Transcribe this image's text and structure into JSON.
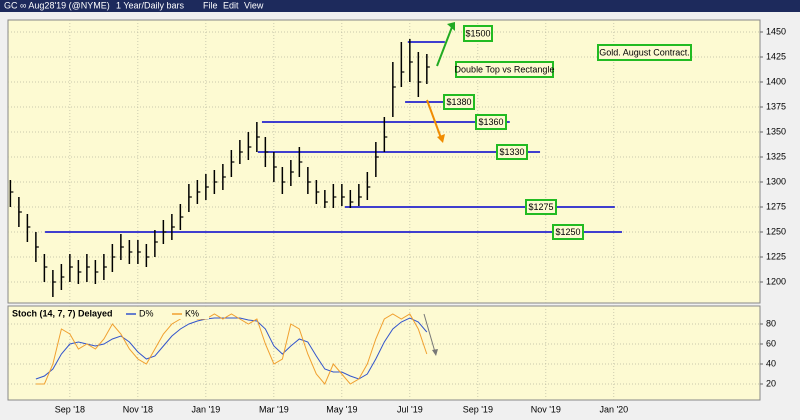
{
  "toolbar": {
    "symbol": "GC ∞ Aug28'19 (@NYME)",
    "period": "1 Year/Daily bars",
    "menu": [
      "File",
      "Edit",
      "View"
    ]
  },
  "chart_data": [
    {
      "type": "range-bar",
      "color": "#000000",
      "x": [
        -0.75,
        -0.5,
        -0.25,
        0,
        0.25,
        0.5,
        0.75,
        1,
        1.25,
        1.5,
        1.75,
        2,
        2.25,
        2.5,
        2.75,
        3,
        3.25,
        3.5,
        3.75,
        4,
        4.25,
        4.5,
        4.75,
        5,
        5.25,
        5.5,
        5.75,
        6,
        6.25,
        6.5,
        6.75,
        7,
        7.25,
        7.5,
        7.75,
        8,
        8.25,
        8.5,
        8.75,
        9,
        9.25,
        9.5,
        9.75,
        10,
        10.25,
        10.5,
        10.75,
        11,
        11.25,
        11.5
      ],
      "series": [
        {
          "name": "High",
          "values": [
            1302,
            1285,
            1268,
            1250,
            1228,
            1212,
            1218,
            1228,
            1222,
            1228,
            1222,
            1228,
            1238,
            1248,
            1242,
            1242,
            1238,
            1252,
            1262,
            1268,
            1278,
            1298,
            1302,
            1308,
            1312,
            1318,
            1332,
            1342,
            1350,
            1360,
            1345,
            1330,
            1315,
            1322,
            1335,
            1315,
            1302,
            1292,
            1298,
            1298,
            1292,
            1298,
            1310,
            1340,
            1365,
            1420,
            1440,
            1443,
            1430,
            1428
          ]
        },
        {
          "name": "Low",
          "values": [
            1275,
            1255,
            1240,
            1220,
            1200,
            1185,
            1192,
            1200,
            1198,
            1200,
            1198,
            1202,
            1210,
            1222,
            1218,
            1218,
            1215,
            1225,
            1238,
            1242,
            1252,
            1270,
            1278,
            1282,
            1288,
            1292,
            1305,
            1318,
            1322,
            1330,
            1315,
            1300,
            1288,
            1296,
            1305,
            1288,
            1278,
            1274,
            1274,
            1276,
            1274,
            1276,
            1282,
            1305,
            1330,
            1365,
            1395,
            1400,
            1385,
            1398
          ]
        },
        {
          "name": "Close",
          "values": [
            1290,
            1270,
            1255,
            1235,
            1215,
            1200,
            1205,
            1215,
            1210,
            1215,
            1210,
            1215,
            1225,
            1235,
            1230,
            1230,
            1225,
            1240,
            1250,
            1255,
            1265,
            1285,
            1290,
            1295,
            1300,
            1305,
            1320,
            1330,
            1335,
            1345,
            1330,
            1315,
            1300,
            1310,
            1320,
            1300,
            1290,
            1280,
            1285,
            1285,
            1280,
            1285,
            1295,
            1325,
            1345,
            1395,
            1410,
            1420,
            1400,
            1415
          ]
        }
      ],
      "xlim": [
        -0.82,
        21.3
      ],
      "ylim": [
        1179,
        1462
      ],
      "yticks": [
        1200,
        1225,
        1250,
        1275,
        1300,
        1325,
        1350,
        1375,
        1400,
        1425,
        1450
      ],
      "levels": [
        {
          "value": 1380,
          "label": "$1380",
          "from": 10.86,
          "to": 12.77
        },
        {
          "value": 1360,
          "label": "$1360",
          "from": 6.65,
          "to": 13.94
        },
        {
          "value": 1330,
          "label": "$1330",
          "from": 6.53,
          "to": 14.83
        },
        {
          "value": 1275,
          "label": "$1275",
          "from": 9.09,
          "to": 17.03
        },
        {
          "value": 1250,
          "label": "$1250",
          "from": 0.27,
          "to": 17.24
        },
        {
          "value": 1440,
          "from": 10.94,
          "to": 12.03
        }
      ],
      "level_color": "#0000cc",
      "notes": [
        "$1500",
        "Double Top vs Rectangle",
        "Gold. August Contract."
      ]
    },
    {
      "type": "line",
      "title": "Stoch (14, 7, 7) Delayed",
      "x": [
        0,
        0.25,
        0.5,
        0.75,
        1,
        1.25,
        1.5,
        1.75,
        2,
        2.25,
        2.5,
        2.75,
        3,
        3.25,
        3.5,
        3.75,
        4,
        4.25,
        4.5,
        4.75,
        5,
        5.25,
        5.5,
        5.75,
        6,
        6.25,
        6.5,
        6.75,
        7,
        7.25,
        7.5,
        7.75,
        8,
        8.25,
        8.5,
        8.75,
        9,
        9.25,
        9.5,
        9.75,
        10,
        10.25,
        10.5,
        10.75,
        11,
        11.25,
        11.5
      ],
      "series": [
        {
          "name": "D%",
          "color": "#3355cc",
          "values": [
            25,
            28,
            35,
            50,
            60,
            62,
            60,
            58,
            60,
            65,
            68,
            62,
            52,
            45,
            48,
            58,
            68,
            75,
            80,
            83,
            85,
            86,
            86,
            86,
            86,
            84,
            83,
            75,
            58,
            50,
            58,
            65,
            62,
            48,
            35,
            32,
            32,
            28,
            25,
            30,
            45,
            62,
            75,
            82,
            86,
            82,
            72
          ]
        },
        {
          "name": "K%",
          "color": "#f0a030",
          "values": [
            20,
            20,
            40,
            75,
            70,
            55,
            60,
            55,
            65,
            80,
            70,
            55,
            45,
            40,
            55,
            70,
            80,
            85,
            90,
            85,
            85,
            90,
            85,
            90,
            85,
            80,
            85,
            60,
            40,
            45,
            80,
            75,
            50,
            30,
            20,
            40,
            30,
            20,
            25,
            40,
            65,
            85,
            90,
            85,
            90,
            75,
            50
          ]
        }
      ],
      "xlim": [
        -0.82,
        21.3
      ],
      "ylim": [
        4,
        98
      ],
      "yticks": [
        20,
        40,
        60,
        80
      ],
      "xticks": [
        {
          "value": 1,
          "label": "Sep '18"
        },
        {
          "value": 3,
          "label": "Nov '18"
        },
        {
          "value": 5,
          "label": "Jan '19"
        },
        {
          "value": 7,
          "label": "Mar '19"
        },
        {
          "value": 9,
          "label": "May '19"
        },
        {
          "value": 11,
          "label": "Jul '19"
        },
        {
          "value": 13,
          "label": "Sep '19"
        },
        {
          "value": 15,
          "label": "Nov '19"
        },
        {
          "value": 17,
          "label": "Jan '20"
        }
      ]
    }
  ]
}
